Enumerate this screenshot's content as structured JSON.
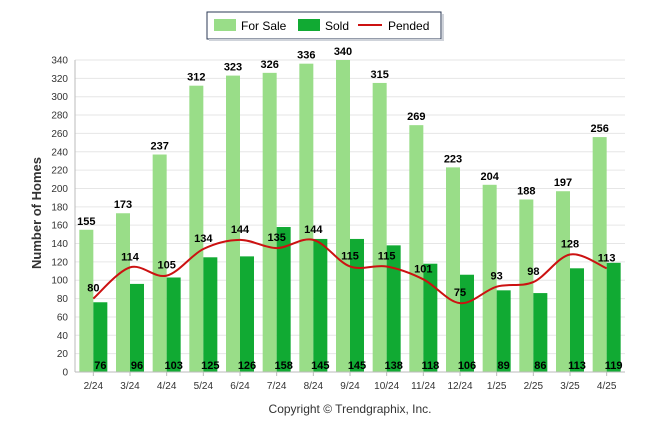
{
  "chart_data": {
    "type": "bar",
    "ylabel": "Number of Homes",
    "ylim": [
      0,
      340
    ],
    "ytick_step": 20,
    "grid": true,
    "legend_position": "top-center",
    "categories": [
      "2/24",
      "3/24",
      "4/24",
      "5/24",
      "6/24",
      "7/24",
      "8/24",
      "9/24",
      "10/24",
      "11/24",
      "12/24",
      "1/25",
      "2/25",
      "3/25",
      "4/25"
    ],
    "series": [
      {
        "name": "For Sale",
        "type": "bar",
        "color": "#99dd88",
        "values": [
          155,
          173,
          237,
          312,
          323,
          326,
          336,
          340,
          315,
          269,
          223,
          204,
          188,
          197,
          256
        ]
      },
      {
        "name": "Sold",
        "type": "bar",
        "color": "#11aa33",
        "values": [
          76,
          96,
          103,
          125,
          126,
          158,
          145,
          145,
          138,
          118,
          106,
          89,
          86,
          113,
          119
        ]
      },
      {
        "name": "Pended",
        "type": "line",
        "color": "#cc1111",
        "values": [
          80,
          114,
          105,
          134,
          144,
          135,
          144,
          115,
          115,
          101,
          75,
          93,
          98,
          128,
          113
        ]
      }
    ]
  },
  "footer": {
    "copyright": "Copyright © Trendgraphix, Inc."
  }
}
